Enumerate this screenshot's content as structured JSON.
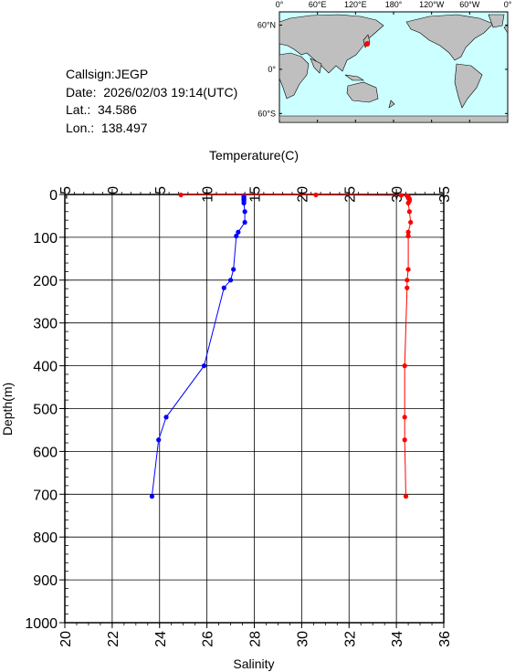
{
  "info": {
    "callsign": "Callsign:JEGP",
    "date": "Date:  2026/02/03 19:14(UTC)",
    "lat": "Lat.:  34.586",
    "lon": "Lon.:  138.497"
  },
  "map": {
    "lon_labels": [
      "0°",
      "60°E",
      "120°E",
      "180°",
      "120°W",
      "60°W",
      "0°"
    ],
    "lat_labels": [
      "60°N",
      "0°",
      "60°S"
    ],
    "ocean_color": "#ccffff",
    "land_color": "#bfbfbf",
    "marker_color": "#ff0000",
    "station": {
      "lon": 138.497,
      "lat": 34.586
    }
  },
  "colors": {
    "temperature": "#0000ff",
    "salinity": "#ff0000"
  },
  "chart_data": {
    "type": "line",
    "y_axis": {
      "label": "Depth(m)",
      "range": [
        1000,
        0
      ],
      "ticks": [
        0,
        100,
        200,
        300,
        400,
        500,
        600,
        700,
        800,
        900,
        1000
      ]
    },
    "top_axis": {
      "label": "Temperature(C)",
      "range": [
        -5,
        35
      ],
      "ticks": [
        -5,
        0,
        5,
        10,
        15,
        20,
        25,
        30,
        35
      ]
    },
    "bottom_axis": {
      "label": "Salinity",
      "range": [
        20,
        36
      ],
      "ticks": [
        20,
        22,
        24,
        26,
        28,
        30,
        32,
        34,
        36
      ]
    },
    "grid": true,
    "series": [
      {
        "name": "Temperature(C)",
        "axis": "top",
        "points": [
          [
            13.9,
            3
          ],
          [
            13.9,
            5
          ],
          [
            13.9,
            8
          ],
          [
            13.9,
            10
          ],
          [
            13.9,
            12
          ],
          [
            13.9,
            15
          ],
          [
            13.9,
            20
          ],
          [
            14.0,
            40
          ],
          [
            14.0,
            65
          ],
          [
            13.3,
            88
          ],
          [
            13.1,
            97
          ],
          [
            12.8,
            175
          ],
          [
            12.5,
            200
          ],
          [
            11.8,
            218
          ],
          [
            9.7,
            400
          ],
          [
            5.7,
            520
          ],
          [
            4.9,
            573
          ],
          [
            4.2,
            705
          ]
        ]
      },
      {
        "name": "Salinity",
        "axis": "bottom",
        "points": [
          [
            24.9,
            1
          ],
          [
            30.6,
            1
          ],
          [
            34.2,
            2
          ],
          [
            34.45,
            3
          ],
          [
            34.5,
            5
          ],
          [
            34.5,
            8
          ],
          [
            34.55,
            10
          ],
          [
            34.55,
            12
          ],
          [
            34.55,
            15
          ],
          [
            34.5,
            20
          ],
          [
            34.55,
            40
          ],
          [
            34.6,
            65
          ],
          [
            34.5,
            88
          ],
          [
            34.5,
            97
          ],
          [
            34.5,
            175
          ],
          [
            34.45,
            200
          ],
          [
            34.45,
            218
          ],
          [
            34.35,
            400
          ],
          [
            34.35,
            520
          ],
          [
            34.35,
            573
          ],
          [
            34.4,
            705
          ]
        ]
      }
    ]
  }
}
